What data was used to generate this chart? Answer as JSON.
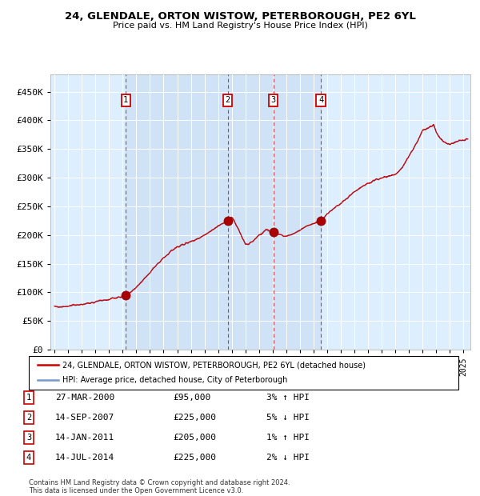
{
  "title": "24, GLENDALE, ORTON WISTOW, PETERBOROUGH, PE2 6YL",
  "subtitle": "Price paid vs. HM Land Registry's House Price Index (HPI)",
  "hpi_color": "#7799cc",
  "price_color": "#cc0000",
  "bg_color": "#ddeeff",
  "plot_bg": "#ffffff",
  "grid_color": "#ffffff",
  "ylim": [
    0,
    480000
  ],
  "yticks": [
    0,
    50000,
    100000,
    150000,
    200000,
    250000,
    300000,
    350000,
    400000,
    450000
  ],
  "xlim_start": 1994.7,
  "xlim_end": 2025.5,
  "transactions": [
    {
      "num": 1,
      "date": "27-MAR-2000",
      "year": 2000.23,
      "price": 95000,
      "pct": "3%",
      "dir": "↑"
    },
    {
      "num": 2,
      "date": "14-SEP-2007",
      "year": 2007.71,
      "price": 225000,
      "pct": "5%",
      "dir": "↓"
    },
    {
      "num": 3,
      "date": "14-JAN-2011",
      "year": 2011.04,
      "price": 205000,
      "pct": "1%",
      "dir": "↑"
    },
    {
      "num": 4,
      "date": "14-JUL-2014",
      "year": 2014.54,
      "price": 225000,
      "pct": "2%",
      "dir": "↓"
    }
  ],
  "legend_line1": "24, GLENDALE, ORTON WISTOW, PETERBOROUGH, PE2 6YL (detached house)",
  "legend_line2": "HPI: Average price, detached house, City of Peterborough",
  "footer": "Contains HM Land Registry data © Crown copyright and database right 2024.\nThis data is licensed under the Open Government Licence v3.0.",
  "anchor_years": [
    1995.0,
    1996.0,
    1997.0,
    1998.0,
    1999.0,
    2000.0,
    2000.25,
    2001.0,
    2002.0,
    2003.0,
    2004.0,
    2005.0,
    2006.0,
    2007.0,
    2007.7,
    2008.0,
    2008.5,
    2009.0,
    2009.5,
    2010.0,
    2010.5,
    2011.04,
    2011.5,
    2012.0,
    2012.5,
    2013.0,
    2013.5,
    2014.0,
    2014.54,
    2015.0,
    2016.0,
    2017.0,
    2018.0,
    2019.0,
    2020.0,
    2020.5,
    2021.0,
    2021.5,
    2022.0,
    2022.5,
    2022.8,
    2023.0,
    2023.5,
    2024.0,
    2024.5,
    2025.0
  ],
  "anchor_prices": [
    75000,
    76000,
    79000,
    83000,
    88000,
    93000,
    95000,
    108000,
    135000,
    160000,
    180000,
    188000,
    200000,
    215000,
    225000,
    232000,
    210000,
    183000,
    188000,
    200000,
    208000,
    205000,
    200000,
    198000,
    202000,
    208000,
    215000,
    220000,
    225000,
    237000,
    255000,
    275000,
    290000,
    300000,
    305000,
    318000,
    338000,
    358000,
    382000,
    388000,
    392000,
    378000,
    362000,
    358000,
    363000,
    366000
  ]
}
